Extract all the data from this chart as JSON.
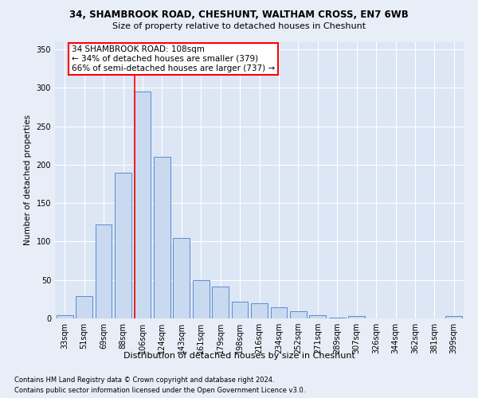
{
  "title1": "34, SHAMBROOK ROAD, CHESHUNT, WALTHAM CROSS, EN7 6WB",
  "title2": "Size of property relative to detached houses in Cheshunt",
  "xlabel": "Distribution of detached houses by size in Cheshunt",
  "ylabel": "Number of detached properties",
  "bar_categories": [
    "33sqm",
    "51sqm",
    "69sqm",
    "88sqm",
    "106sqm",
    "124sqm",
    "143sqm",
    "161sqm",
    "179sqm",
    "198sqm",
    "216sqm",
    "234sqm",
    "252sqm",
    "271sqm",
    "289sqm",
    "307sqm",
    "326sqm",
    "344sqm",
    "362sqm",
    "381sqm",
    "399sqm"
  ],
  "bar_heights": [
    4,
    29,
    122,
    190,
    295,
    210,
    105,
    50,
    41,
    22,
    20,
    14,
    9,
    4,
    1,
    3,
    0,
    0,
    0,
    0,
    3
  ],
  "bar_color": "#c9daf0",
  "bar_edge_color": "#5b8bd0",
  "red_line_index": 4,
  "annotation_title": "34 SHAMBROOK ROAD: 108sqm",
  "annotation_line1": "← 34% of detached houses are smaller (379)",
  "annotation_line2": "66% of semi-detached houses are larger (737) →",
  "footer1": "Contains HM Land Registry data © Crown copyright and database right 2024.",
  "footer2": "Contains public sector information licensed under the Open Government Licence v3.0.",
  "ylim": [
    0,
    360
  ],
  "yticks": [
    0,
    50,
    100,
    150,
    200,
    250,
    300,
    350
  ],
  "bg_color": "#e8eef7",
  "plot_bg_color": "#dce6f5",
  "title1_fontsize": 8.5,
  "title2_fontsize": 8.0,
  "ylabel_fontsize": 7.5,
  "xlabel_fontsize": 8.0,
  "tick_fontsize": 7.0,
  "annot_fontsize": 7.5,
  "footer_fontsize": 6.0
}
